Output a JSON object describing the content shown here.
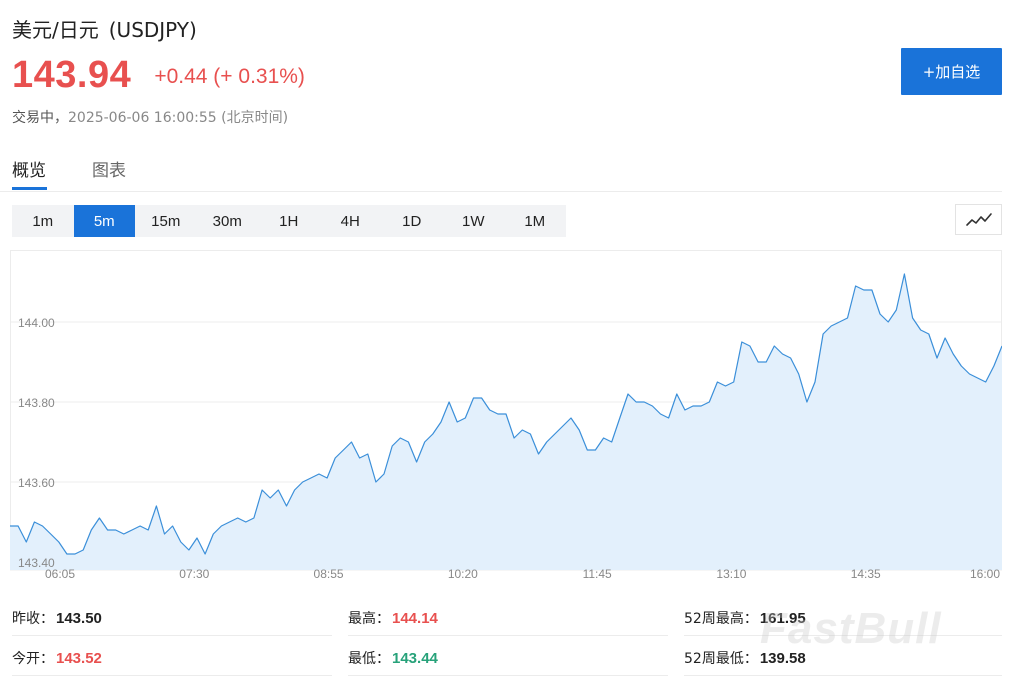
{
  "header": {
    "name": "美元/日元",
    "code": "(USDJPY)",
    "price": "143.94",
    "change": "+0.44 (+ 0.31%)",
    "status": "交易中，",
    "timestamp": "2025-06-06 16:00:55 (北京时间)",
    "add_button": "+加自选"
  },
  "colors": {
    "up": "#e8504f",
    "down": "#27a27a",
    "accent": "#1a73d9",
    "line": "#3b8fd9",
    "area": "#e3f0fc"
  },
  "tabs": [
    {
      "label": "概览",
      "active": true
    },
    {
      "label": "图表",
      "active": false
    }
  ],
  "intervals": [
    {
      "label": "1m",
      "active": false
    },
    {
      "label": "5m",
      "active": true
    },
    {
      "label": "15m",
      "active": false
    },
    {
      "label": "30m",
      "active": false
    },
    {
      "label": "1H",
      "active": false
    },
    {
      "label": "4H",
      "active": false
    },
    {
      "label": "1D",
      "active": false
    },
    {
      "label": "1W",
      "active": false
    },
    {
      "label": "1M",
      "active": false
    }
  ],
  "chart_type_icon": "line-chart-icon",
  "chart_data": {
    "type": "area",
    "title": "",
    "xlabel": "",
    "ylabel": "",
    "ylim": [
      143.38,
      144.18
    ],
    "y_ticks": [
      "144.00",
      "143.80",
      "143.60",
      "143.40"
    ],
    "x_ticks": [
      "06:05",
      "07:30",
      "08:55",
      "10:20",
      "11:45",
      "13:10",
      "14:35",
      "16:00"
    ],
    "grid": true,
    "series": [
      {
        "values": [
          143.49,
          143.49,
          143.45,
          143.5,
          143.49,
          143.47,
          143.45,
          143.42,
          143.42,
          143.43,
          143.48,
          143.51,
          143.48,
          143.48,
          143.47,
          143.48,
          143.49,
          143.48,
          143.54,
          143.47,
          143.49,
          143.45,
          143.43,
          143.46,
          143.42,
          143.47,
          143.49,
          143.5,
          143.51,
          143.5,
          143.51,
          143.58,
          143.56,
          143.58,
          143.54,
          143.58,
          143.6,
          143.61,
          143.62,
          143.61,
          143.66,
          143.68,
          143.7,
          143.66,
          143.67,
          143.6,
          143.62,
          143.69,
          143.71,
          143.7,
          143.65,
          143.7,
          143.72,
          143.75,
          143.8,
          143.75,
          143.76,
          143.81,
          143.81,
          143.78,
          143.77,
          143.77,
          143.71,
          143.73,
          143.72,
          143.67,
          143.7,
          143.72,
          143.74,
          143.76,
          143.73,
          143.68,
          143.68,
          143.71,
          143.7,
          143.76,
          143.82,
          143.8,
          143.8,
          143.79,
          143.77,
          143.76,
          143.82,
          143.78,
          143.79,
          143.79,
          143.8,
          143.85,
          143.84,
          143.85,
          143.95,
          143.94,
          143.9,
          143.9,
          143.94,
          143.92,
          143.91,
          143.87,
          143.8,
          143.85,
          143.97,
          143.99,
          144.0,
          144.01,
          144.09,
          144.08,
          144.08,
          144.02,
          144.0,
          144.03,
          144.12,
          144.01,
          143.98,
          143.97,
          143.91,
          143.96,
          143.92,
          143.89,
          143.87,
          143.86,
          143.85,
          143.89,
          143.94
        ]
      }
    ]
  },
  "stats": [
    {
      "label": "昨收：",
      "value": "143.50",
      "color": "dark"
    },
    {
      "label": "最高：",
      "value": "144.14",
      "color": "red"
    },
    {
      "label": "52周最高：",
      "value": "161.95",
      "color": "dark"
    },
    {
      "label": "今开：",
      "value": "143.52",
      "color": "red"
    },
    {
      "label": "最低：",
      "value": "143.44",
      "color": "green"
    },
    {
      "label": "52周最低：",
      "value": "139.58",
      "color": "dark"
    }
  ],
  "watermark": "FastBull"
}
